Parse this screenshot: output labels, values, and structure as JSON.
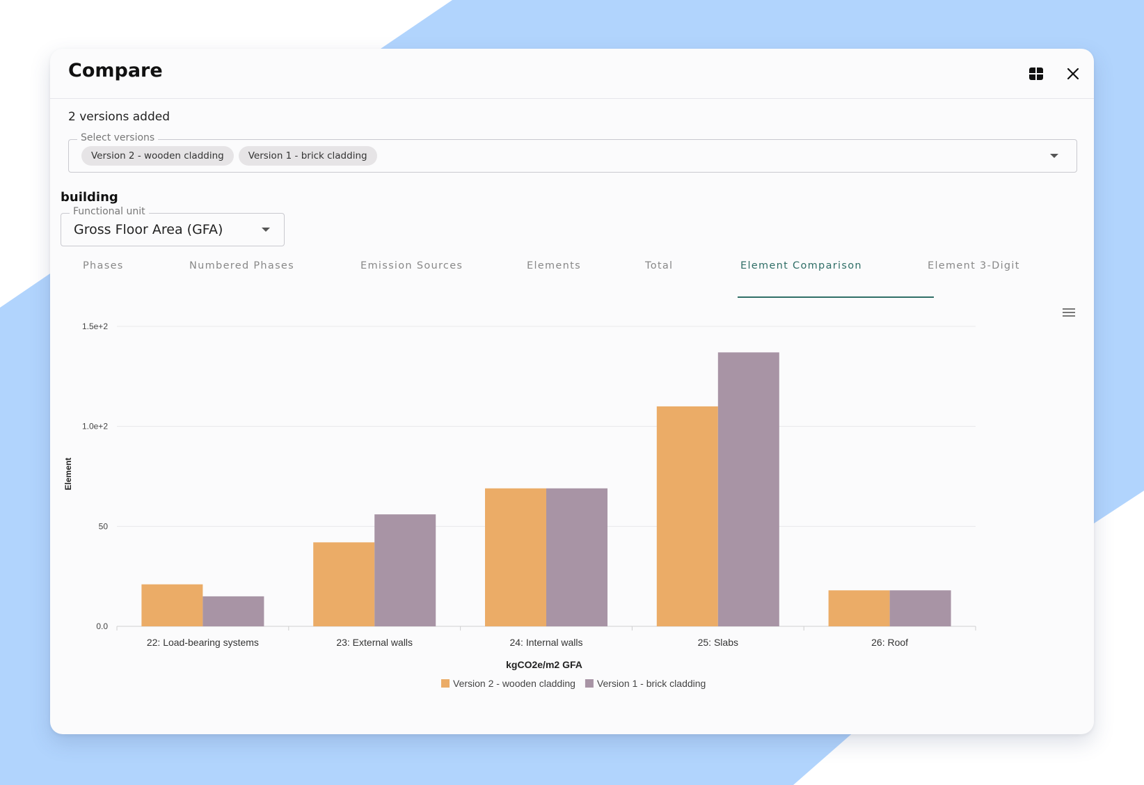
{
  "colors": {
    "background_shape": "#b1d4fd",
    "series_1": "#ebac67",
    "series_2": "#a894a5",
    "accent": "#2f6e66"
  },
  "dialog": {
    "title": "Compare",
    "grid_icon": "grid-view-icon",
    "close_icon": "close-icon"
  },
  "versions": {
    "count_text": "2 versions added",
    "select_label": "Select versions",
    "chips": [
      "Version 2 - wooden cladding",
      "Version 1 - brick cladding"
    ]
  },
  "building": {
    "title": "building",
    "unit_label": "Functional unit",
    "unit_value": "Gross Floor Area (GFA)"
  },
  "tabs": [
    {
      "label": "Phases",
      "active": false
    },
    {
      "label": "Numbered Phases",
      "active": false
    },
    {
      "label": "Emission Sources",
      "active": false
    },
    {
      "label": "Elements",
      "active": false
    },
    {
      "label": "Total",
      "active": false
    },
    {
      "label": "Element Comparison",
      "active": true
    },
    {
      "label": "Element 3-Digit",
      "active": false
    }
  ],
  "chart_menu_icon": "hamburger-menu-icon",
  "chart_data": {
    "type": "bar",
    "categories": [
      "22: Load-bearing systems",
      "23: External walls",
      "24: Internal walls",
      "25: Slabs",
      "26: Roof"
    ],
    "series": [
      {
        "name": "Version 2 - wooden cladding",
        "values": [
          21,
          42,
          69,
          110,
          18
        ]
      },
      {
        "name": "Version 1 - brick cladding",
        "values": [
          15,
          56,
          69,
          137,
          18
        ]
      }
    ],
    "yticks": [
      0,
      50,
      100,
      150
    ],
    "ytick_labels": [
      "0.0",
      "50",
      "1.0e+2",
      "1.5e+2"
    ],
    "ylim": [
      0,
      150
    ],
    "ylabel": "Element",
    "xlabel": "kgCO2e/m2 GFA",
    "grid": true,
    "legend_position": "bottom-center"
  }
}
